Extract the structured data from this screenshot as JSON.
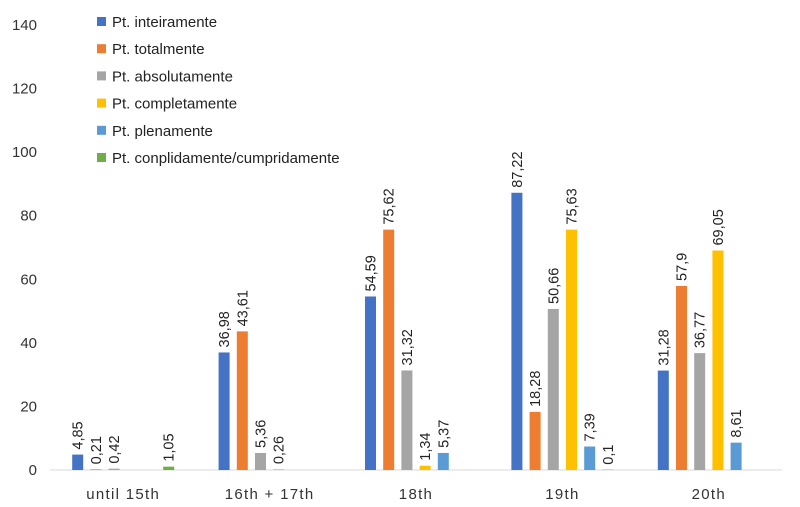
{
  "chart_data": {
    "type": "bar",
    "title": "",
    "xlabel": "",
    "ylabel": "",
    "ylim": [
      0,
      140
    ],
    "yticks": [
      "0",
      "20",
      "40",
      "60",
      "80",
      "100",
      "120",
      "140"
    ],
    "categories": [
      "until 15th",
      "16th + 17th",
      "18th",
      "19th",
      "20th"
    ],
    "legend_position": "top-left",
    "series": [
      {
        "name": "Pt. inteiramente",
        "color": "#4472C4",
        "values": [
          4.85,
          36.98,
          54.59,
          87.22,
          31.28
        ],
        "labels": [
          "4,85",
          "36,98",
          "54,59",
          "87,22",
          "31,28"
        ]
      },
      {
        "name": "Pt. totalmente",
        "color": "#ED7D31",
        "values": [
          0.21,
          43.61,
          75.62,
          18.28,
          57.9
        ],
        "labels": [
          "0,21",
          "43,61",
          "75,62",
          "18,28",
          "57,9"
        ]
      },
      {
        "name": "Pt. absolutamente",
        "color": "#A5A5A5",
        "values": [
          0.42,
          5.36,
          31.32,
          50.66,
          36.77
        ],
        "labels": [
          "0,42",
          "5,36",
          "31,32",
          "50,66",
          "36,77"
        ]
      },
      {
        "name": "Pt. completamente",
        "color": "#FFC000",
        "values": [
          null,
          0.26,
          1.34,
          75.63,
          69.05
        ],
        "labels": [
          null,
          "0,26",
          "1,34",
          "75,63",
          "69,05"
        ]
      },
      {
        "name": "Pt. plenamente",
        "color": "#5B9BD5",
        "values": [
          null,
          null,
          5.37,
          7.39,
          8.61
        ],
        "labels": [
          null,
          null,
          "5,37",
          "7,39",
          "8,61"
        ]
      },
      {
        "name": "Pt. conplidamente/cumpridamente",
        "color": "#70AD47",
        "values": [
          1.05,
          null,
          null,
          0.1,
          null
        ],
        "labels": [
          "1,05",
          null,
          null,
          "0,1",
          null
        ]
      }
    ]
  }
}
